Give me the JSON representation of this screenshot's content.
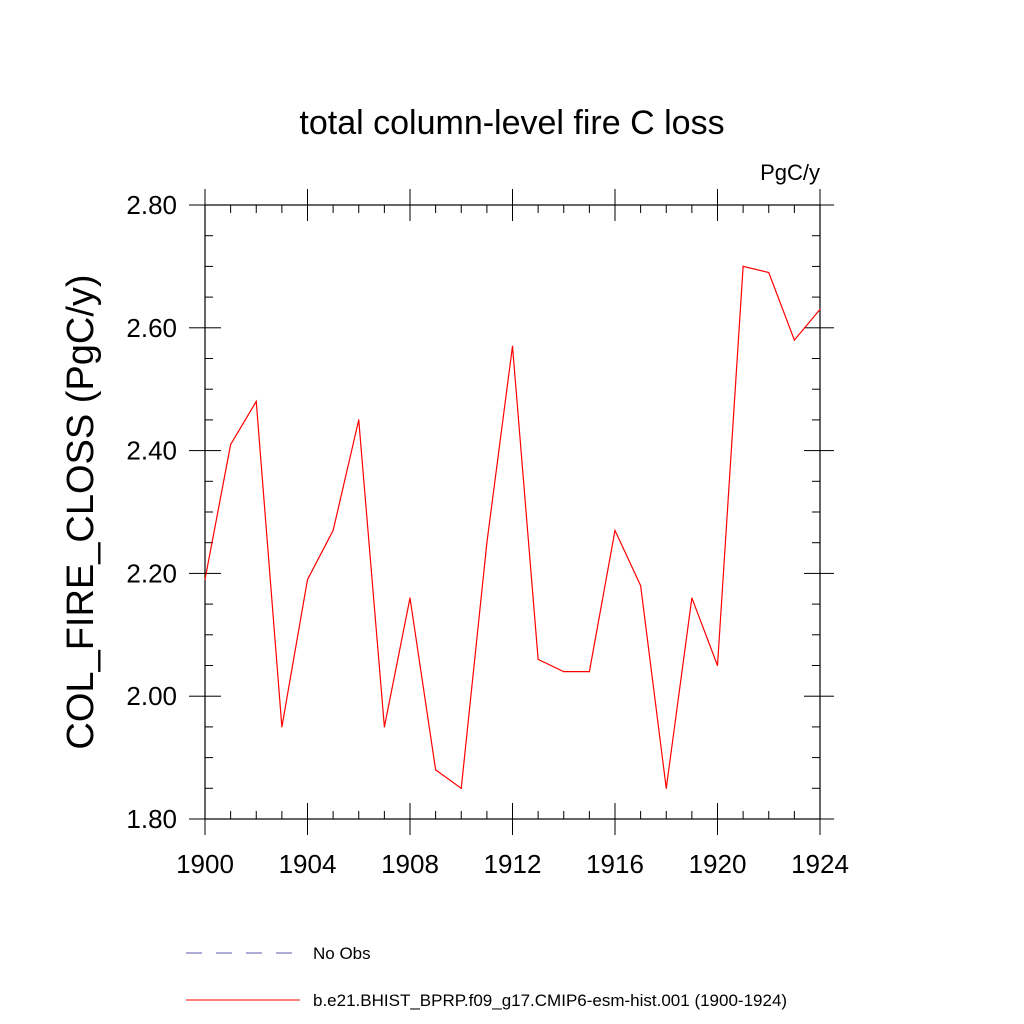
{
  "chart_data": {
    "type": "line",
    "title": "total column-level fire C loss",
    "units_label": "PgC/y",
    "xlabel": "",
    "ylabel": "COL_FIRE_CLOSS  (PgC/y)",
    "xlim": [
      1900,
      1924
    ],
    "ylim": [
      1.8,
      2.8
    ],
    "x_major_ticks": [
      1900,
      1904,
      1908,
      1912,
      1916,
      1920,
      1924
    ],
    "x_tick_labels": [
      "1900",
      "1904",
      "1908",
      "1912",
      "1916",
      "1920",
      "1924"
    ],
    "y_major_ticks": [
      1.8,
      2.0,
      2.2,
      2.4,
      2.6,
      2.8
    ],
    "y_tick_labels": [
      "1.80",
      "2.00",
      "2.20",
      "2.40",
      "2.60",
      "2.80"
    ],
    "series": [
      {
        "name": "b.e21.BHIST_BPRP.f09_g17.CMIP6-esm-hist.001 (1900-1924)",
        "color": "#ff0000",
        "dash": "solid",
        "x": [
          1900,
          1901,
          1902,
          1903,
          1904,
          1905,
          1906,
          1907,
          1908,
          1909,
          1910,
          1911,
          1912,
          1913,
          1914,
          1915,
          1916,
          1917,
          1918,
          1919,
          1920,
          1921,
          1922,
          1923,
          1924
        ],
        "y": [
          2.19,
          2.41,
          2.48,
          1.95,
          2.19,
          2.27,
          2.45,
          1.95,
          2.16,
          1.88,
          1.85,
          2.25,
          2.57,
          2.06,
          2.04,
          2.04,
          2.27,
          2.18,
          1.85,
          2.16,
          2.05,
          2.7,
          2.69,
          2.58,
          2.63
        ]
      }
    ],
    "legend": [
      {
        "label": "No Obs",
        "color": "#5a5aa8",
        "dash": "dashed"
      },
      {
        "label": "b.e21.BHIST_BPRP.f09_g17.CMIP6-esm-hist.001 (1900-1924)",
        "color": "#ff0000",
        "dash": "solid"
      }
    ],
    "legend_position": "bottom"
  }
}
